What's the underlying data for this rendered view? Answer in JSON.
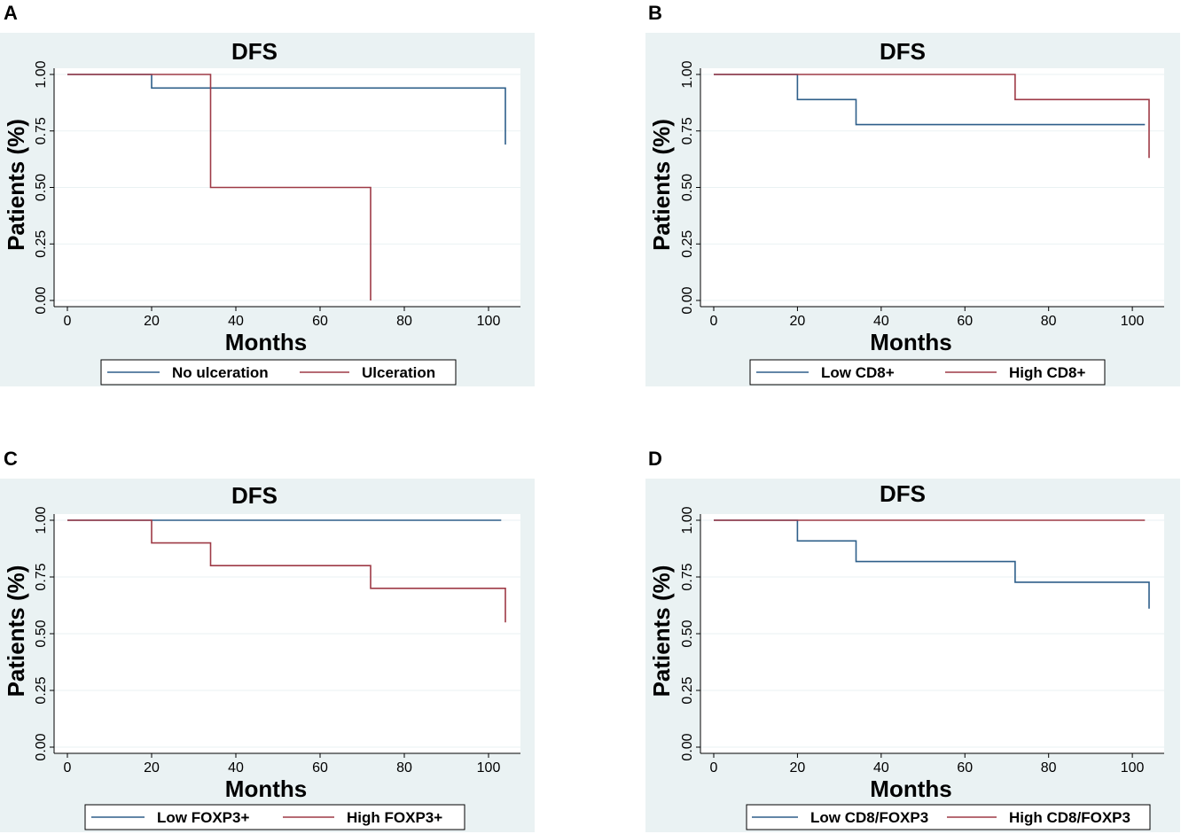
{
  "chart_data": [
    {
      "panel": "A",
      "type": "line",
      "style": "step",
      "title": "DFS",
      "xlabel": "Months",
      "ylabel": "Patients (%)",
      "xlim": [
        0,
        104
      ],
      "ylim": [
        0,
        1
      ],
      "xticks": [
        "0",
        "20",
        "40",
        "60",
        "80",
        "100"
      ],
      "yticks": [
        "0.00",
        "0.25",
        "0.50",
        "0.75",
        "1.00"
      ],
      "legend_position": "bottom",
      "series": [
        {
          "name": "No ulceration",
          "color": "#2e5f8a",
          "x": [
            0,
            20,
            20,
            104,
            104
          ],
          "y": [
            1.0,
            1.0,
            0.94,
            0.94,
            0.69
          ]
        },
        {
          "name": "Ulceration",
          "color": "#9e3a46",
          "x": [
            0,
            34,
            34,
            72,
            72
          ],
          "y": [
            1.0,
            1.0,
            0.5,
            0.5,
            0.0
          ]
        }
      ]
    },
    {
      "panel": "B",
      "type": "line",
      "style": "step",
      "title": "DFS",
      "xlabel": "Months",
      "ylabel": "Patients (%)",
      "xlim": [
        0,
        104
      ],
      "ylim": [
        0,
        1
      ],
      "xticks": [
        "0",
        "20",
        "40",
        "60",
        "80",
        "100"
      ],
      "yticks": [
        "0.00",
        "0.25",
        "0.50",
        "0.75",
        "1.00"
      ],
      "legend_position": "bottom",
      "series": [
        {
          "name": "Low CD8+",
          "color": "#2e5f8a",
          "x": [
            0,
            20,
            20,
            34,
            34,
            103
          ],
          "y": [
            1.0,
            1.0,
            0.889,
            0.889,
            0.778,
            0.778
          ]
        },
        {
          "name": "High CD8+",
          "color": "#9e3a46",
          "x": [
            0,
            72,
            72,
            104,
            104
          ],
          "y": [
            1.0,
            1.0,
            0.889,
            0.889,
            0.63
          ]
        }
      ]
    },
    {
      "panel": "C",
      "type": "line",
      "style": "step",
      "title": "DFS",
      "xlabel": "Months",
      "ylabel": "Patients (%)",
      "xlim": [
        0,
        104
      ],
      "ylim": [
        0,
        1
      ],
      "xticks": [
        "0",
        "20",
        "40",
        "60",
        "80",
        "100"
      ],
      "yticks": [
        "0.00",
        "0.25",
        "0.50",
        "0.75",
        "1.00"
      ],
      "legend_position": "bottom",
      "series": [
        {
          "name": "Low FOXP3+",
          "color": "#2e5f8a",
          "x": [
            0,
            103
          ],
          "y": [
            1.0,
            1.0
          ]
        },
        {
          "name": "High FOXP3+",
          "color": "#9e3a46",
          "x": [
            0,
            20,
            20,
            34,
            34,
            72,
            72,
            104,
            104
          ],
          "y": [
            1.0,
            1.0,
            0.9,
            0.9,
            0.8,
            0.8,
            0.7,
            0.7,
            0.55
          ]
        }
      ]
    },
    {
      "panel": "D",
      "type": "line",
      "style": "step",
      "title": "DFS",
      "xlabel": "Months",
      "ylabel": "Patients (%)",
      "xlim": [
        0,
        104
      ],
      "ylim": [
        0,
        1
      ],
      "xticks": [
        "0",
        "20",
        "40",
        "60",
        "80",
        "100"
      ],
      "yticks": [
        "0.00",
        "0.25",
        "0.50",
        "0.75",
        "1.00"
      ],
      "legend_position": "bottom",
      "series": [
        {
          "name": "Low CD8/FOXP3",
          "color": "#2e5f8a",
          "x": [
            0,
            20,
            20,
            34,
            34,
            72,
            72,
            104,
            104
          ],
          "y": [
            1.0,
            1.0,
            0.909,
            0.909,
            0.818,
            0.818,
            0.727,
            0.727,
            0.61
          ]
        },
        {
          "name": "High CD8/FOXP3",
          "color": "#9e3a46",
          "x": [
            0,
            103
          ],
          "y": [
            1.0,
            1.0
          ]
        }
      ]
    }
  ],
  "colors": {
    "panel_bg": "#eaf2f3",
    "plot_bg": "#ffffff",
    "gridline": "#eaf2f3",
    "axis": "#000000"
  }
}
